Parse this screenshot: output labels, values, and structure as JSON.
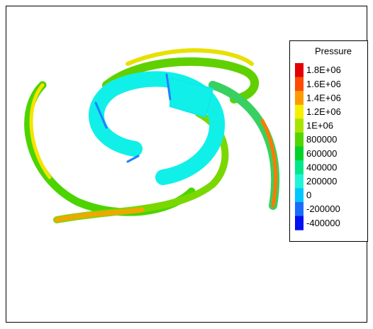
{
  "legend": {
    "title": "Pressure",
    "levels": [
      {
        "label": "1.8E+06",
        "color": "#e40000"
      },
      {
        "label": "1.6E+06",
        "color": "#ff4a00"
      },
      {
        "label": "1.4E+06",
        "color": "#ff9a00"
      },
      {
        "label": "1.2E+06",
        "color": "#f4f000"
      },
      {
        "label": "1E+06",
        "color": "#a8e400"
      },
      {
        "label": "800000",
        "color": "#52d600"
      },
      {
        "label": "600000",
        "color": "#00d42a"
      },
      {
        "label": "400000",
        "color": "#00e88a"
      },
      {
        "label": "200000",
        "color": "#22f4d8"
      },
      {
        "label": "0",
        "color": "#00c8ff"
      },
      {
        "label": "-200000",
        "color": "#1a6cff"
      },
      {
        "label": "-400000",
        "color": "#0010f0"
      }
    ]
  }
}
